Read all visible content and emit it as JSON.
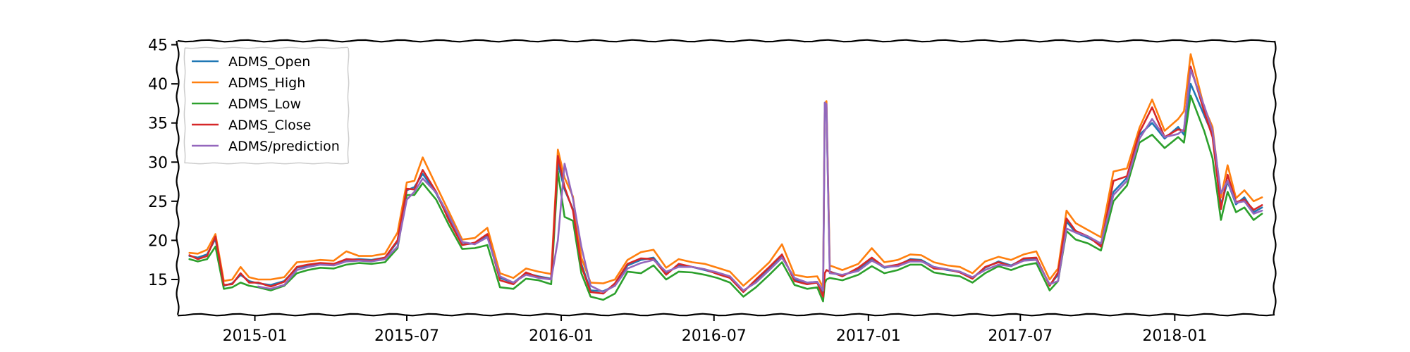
{
  "chart_data": {
    "type": "line",
    "title": "",
    "xlabel": "",
    "ylabel": "",
    "x_range": [
      "2014-10-01",
      "2018-04-30"
    ],
    "ylim": [
      10.5,
      45.5
    ],
    "x_ticks": [
      {
        "date": "2015-01-01",
        "label": "2015-01"
      },
      {
        "date": "2015-07-01",
        "label": "2015-07"
      },
      {
        "date": "2016-01-01",
        "label": "2016-01"
      },
      {
        "date": "2016-07-01",
        "label": "2016-07"
      },
      {
        "date": "2017-01-01",
        "label": "2017-01"
      },
      {
        "date": "2017-07-01",
        "label": "2017-07"
      },
      {
        "date": "2018-01-01",
        "label": "2018-01"
      }
    ],
    "y_ticks": [
      15,
      20,
      25,
      30,
      35,
      40,
      45
    ],
    "grid": false,
    "legend_position": "top-left",
    "series_dates": [
      "2014-10-15",
      "2014-10-25",
      "2014-11-05",
      "2014-11-15",
      "2014-11-25",
      "2014-12-05",
      "2014-12-15",
      "2014-12-25",
      "2015-01-05",
      "2015-01-20",
      "2015-02-05",
      "2015-02-20",
      "2015-03-05",
      "2015-03-20",
      "2015-04-05",
      "2015-04-20",
      "2015-05-05",
      "2015-05-20",
      "2015-06-05",
      "2015-06-20",
      "2015-07-01",
      "2015-07-10",
      "2015-07-20",
      "2015-08-05",
      "2015-08-20",
      "2015-09-05",
      "2015-09-20",
      "2015-10-05",
      "2015-10-20",
      "2015-11-05",
      "2015-11-20",
      "2015-12-05",
      "2015-12-20",
      "2015-12-28",
      "2016-01-05",
      "2016-01-15",
      "2016-01-25",
      "2016-02-05",
      "2016-02-20",
      "2016-03-05",
      "2016-03-20",
      "2016-04-05",
      "2016-04-20",
      "2016-05-05",
      "2016-05-20",
      "2016-06-05",
      "2016-06-20",
      "2016-07-05",
      "2016-07-20",
      "2016-08-05",
      "2016-08-20",
      "2016-09-05",
      "2016-09-20",
      "2016-10-05",
      "2016-10-20",
      "2016-11-01",
      "2016-11-08",
      "2016-11-10",
      "2016-11-12",
      "2016-11-16",
      "2016-12-01",
      "2016-12-20",
      "2017-01-05",
      "2017-01-20",
      "2017-02-05",
      "2017-02-20",
      "2017-03-05",
      "2017-03-20",
      "2017-04-05",
      "2017-04-20",
      "2017-05-05",
      "2017-05-20",
      "2017-06-05",
      "2017-06-20",
      "2017-07-05",
      "2017-07-20",
      "2017-08-05",
      "2017-08-15",
      "2017-08-25",
      "2017-09-05",
      "2017-09-20",
      "2017-10-05",
      "2017-10-20",
      "2017-11-05",
      "2017-11-20",
      "2017-12-05",
      "2017-12-20",
      "2018-01-05",
      "2018-01-12",
      "2018-01-20",
      "2018-02-05",
      "2018-02-15",
      "2018-02-25",
      "2018-03-05",
      "2018-03-15",
      "2018-03-25",
      "2018-04-05",
      "2018-04-15"
    ],
    "series": [
      {
        "name": "ADMS_Open",
        "color": "#1f77b4",
        "values": [
          18,
          17.8,
          18.2,
          20.2,
          14.2,
          14.5,
          15.6,
          14.8,
          14.5,
          14.3,
          14.8,
          16.5,
          16.8,
          17,
          16.9,
          17.5,
          17.6,
          17.5,
          17.8,
          19.8,
          26.4,
          26.8,
          28.5,
          26,
          22.8,
          19.5,
          19.6,
          20.5,
          15.2,
          14.6,
          15.8,
          15.4,
          15.1,
          29.8,
          26.5,
          24,
          17,
          13.6,
          13.5,
          14.2,
          16.8,
          17.5,
          17.8,
          15.8,
          16.8,
          16.6,
          16.2,
          15.8,
          15.3,
          13.5,
          14.8,
          16.4,
          18,
          15,
          14.6,
          14.7,
          13.2,
          36.5,
          37,
          16,
          15.5,
          16.3,
          17.5,
          16.5,
          16.8,
          17.6,
          17.5,
          16.6,
          16.2,
          16,
          15.2,
          16.5,
          17.3,
          16.8,
          17.6,
          17.7,
          14.3,
          15.6,
          22.4,
          21,
          20.3,
          19.5,
          26.2,
          28,
          33.5,
          35,
          33,
          34.5,
          33.5,
          40,
          36,
          33.5,
          24.5,
          27.5,
          24.6,
          25.5,
          23.6,
          24.2
        ]
      },
      {
        "name": "ADMS_High",
        "color": "#ff7f0e",
        "values": [
          18.4,
          18.3,
          18.8,
          20.8,
          14.8,
          15,
          16.6,
          15.3,
          15,
          15,
          15.3,
          17.2,
          17.3,
          17.5,
          17.4,
          18.6,
          18,
          18,
          18.3,
          21,
          27.4,
          27.6,
          30.6,
          27,
          23.7,
          20.1,
          20.3,
          21.6,
          15.8,
          15.2,
          16.4,
          16,
          15.7,
          31.6,
          28,
          25.6,
          17.8,
          14.6,
          14.5,
          15,
          17.5,
          18.5,
          18.8,
          16.5,
          17.6,
          17.2,
          17,
          16.5,
          16,
          14.2,
          15.6,
          17.2,
          19.5,
          15.6,
          15.3,
          15.4,
          14,
          37.5,
          37.8,
          16.8,
          16.2,
          17,
          19,
          17.2,
          17.5,
          18.2,
          18.1,
          17.2,
          16.8,
          16.6,
          15.8,
          17.3,
          17.9,
          17.5,
          18.2,
          18.6,
          15,
          16.4,
          23.8,
          22.2,
          21.3,
          20.4,
          28.8,
          29.2,
          34.4,
          38,
          34,
          35.5,
          36.5,
          43.8,
          37,
          34.5,
          25.5,
          29.6,
          25.4,
          26.4,
          25,
          25.5
        ]
      },
      {
        "name": "ADMS_Low",
        "color": "#2ca02c",
        "values": [
          17.6,
          17.3,
          17.6,
          19.2,
          13.8,
          14,
          14.6,
          14.2,
          14,
          13.6,
          14.2,
          15.8,
          16.2,
          16.5,
          16.4,
          16.9,
          17.1,
          17,
          17.2,
          19,
          25.8,
          25.8,
          27.3,
          25.2,
          22,
          18.9,
          19,
          19.4,
          14,
          13.8,
          15.1,
          14.9,
          14.4,
          28.8,
          23,
          22.5,
          15.8,
          12.8,
          12.4,
          13.2,
          16,
          15.8,
          16.8,
          15,
          16,
          15.9,
          15.6,
          15.2,
          14.6,
          12.8,
          14,
          15.6,
          17.2,
          14.3,
          13.8,
          14,
          12.2,
          14.5,
          15,
          15.2,
          14.9,
          15.6,
          16.7,
          15.8,
          16.2,
          16.9,
          16.9,
          15.9,
          15.6,
          15.4,
          14.6,
          15.8,
          16.7,
          16.2,
          16.8,
          17.1,
          13.6,
          14.8,
          21.2,
          20.1,
          19.6,
          18.7,
          25,
          27,
          32.5,
          33.5,
          31.8,
          33.2,
          32.5,
          38.5,
          34,
          30.5,
          22.6,
          26.2,
          23.6,
          24.2,
          22.6,
          23.4
        ]
      },
      {
        "name": "ADMS_Close",
        "color": "#d62728",
        "values": [
          18.1,
          17.6,
          18,
          20.5,
          14.3,
          14.4,
          15.8,
          14.6,
          14.6,
          14.1,
          14.7,
          16.6,
          16.9,
          17.1,
          17,
          17.6,
          17.5,
          17.4,
          17.8,
          20,
          26.6,
          26.5,
          29,
          26.2,
          22.6,
          19.4,
          19.7,
          20.8,
          14.9,
          14.4,
          15.9,
          15.3,
          15,
          30.8,
          26.8,
          23.8,
          16.7,
          13.4,
          13.2,
          14.5,
          17,
          17.7,
          17.6,
          15.6,
          17,
          16.6,
          16.3,
          15.7,
          15.2,
          13.4,
          15,
          16.6,
          18.2,
          14.8,
          14.4,
          14.6,
          12.8,
          15.8,
          16.2,
          16,
          15.4,
          16.5,
          17.8,
          16.6,
          16.9,
          17.5,
          17.4,
          16.4,
          16.3,
          15.9,
          15.1,
          16.6,
          17.2,
          16.7,
          17.7,
          17.8,
          14.2,
          15.9,
          22.8,
          21.2,
          20.5,
          19.2,
          27.6,
          28.2,
          33.8,
          37,
          33.2,
          34.2,
          34,
          42.2,
          36.5,
          33.2,
          24,
          28.4,
          24.9,
          25.2,
          23.9,
          24.5
        ]
      },
      {
        "name": "ADMS/prediction",
        "color": "#9467bd",
        "values": [
          null,
          null,
          null,
          null,
          null,
          null,
          null,
          null,
          14.1,
          13.8,
          14.3,
          16.2,
          16.6,
          16.9,
          16.8,
          17.3,
          17.4,
          17.3,
          17.6,
          19.2,
          25.2,
          26.2,
          27.9,
          26.1,
          23.2,
          19.8,
          19.5,
          20.4,
          15.4,
          14.6,
          15.6,
          15.2,
          15,
          20,
          29.8,
          25.3,
          19.2,
          14.2,
          13.4,
          14.2,
          16.4,
          17.1,
          17.5,
          16,
          16.6,
          16.6,
          16.3,
          15.9,
          15.4,
          13.6,
          14.6,
          16.2,
          17.8,
          15.2,
          14.6,
          14.7,
          13.6,
          37.6,
          37.4,
          15.8,
          15.6,
          16.1,
          17.4,
          16.6,
          16.7,
          17.3,
          17.3,
          16.6,
          16.3,
          16,
          15.3,
          16.2,
          16.9,
          16.7,
          17.4,
          17.5,
          14.4,
          14.8,
          21.5,
          21,
          20.5,
          19.6,
          25.8,
          27.6,
          33,
          35.5,
          33.2,
          33.6,
          34.2,
          41.8,
          37.2,
          34,
          26,
          27.6,
          24.8,
          25,
          23.4,
          23.8
        ]
      }
    ]
  }
}
